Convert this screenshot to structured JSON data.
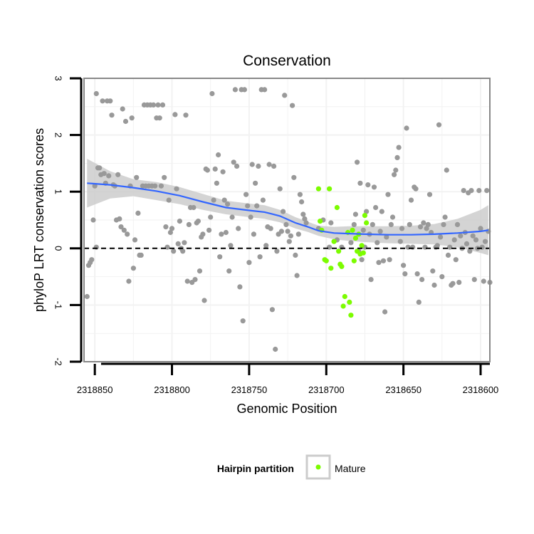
{
  "chart_data": {
    "type": "scatter",
    "title": "Conservation",
    "xlabel": "Genomic Position",
    "ylabel": "phyloP LRT conservation scores",
    "x_reversed": true,
    "xlim": [
      2318857,
      2318594
    ],
    "ylim": [
      -2,
      3
    ],
    "x_ticks": [
      2318850,
      2318800,
      2318750,
      2318700,
      2318650,
      2318600
    ],
    "x_tick_labels": [
      "2318850",
      "2318800",
      "2318750",
      "2318700",
      "2318650",
      "2318600"
    ],
    "y_ticks": [
      -2,
      -1,
      0,
      1,
      2,
      3
    ],
    "y_tick_labels": [
      "-2",
      "-1",
      "0",
      "1",
      "2",
      "3"
    ],
    "grid": true,
    "reference_line": {
      "y": 0,
      "style": "dashed",
      "color": "#000000"
    },
    "legend": {
      "title": "Hairpin partition",
      "position": "bottom",
      "entries": [
        {
          "label": "Mature",
          "color": "#7cfc00"
        }
      ]
    },
    "colors": {
      "other": "#999999",
      "mature": "#7cfc00",
      "smooth": "#3366ff",
      "band": "#cccccc",
      "panel_border": "#888888",
      "grid": "#f2f2f2"
    },
    "smooth": {
      "x": [
        2318855,
        2318840,
        2318825,
        2318810,
        2318795,
        2318780,
        2318765,
        2318750,
        2318740,
        2318730,
        2318720,
        2318712,
        2318705,
        2318695,
        2318685,
        2318675,
        2318660,
        2318645,
        2318630,
        2318615,
        2318600,
        2318595
      ],
      "y": [
        1.15,
        1.12,
        1.07,
        1.01,
        0.93,
        0.82,
        0.72,
        0.67,
        0.64,
        0.57,
        0.45,
        0.38,
        0.31,
        0.27,
        0.26,
        0.25,
        0.24,
        0.24,
        0.25,
        0.27,
        0.3,
        0.32
      ],
      "lower": [
        0.72,
        0.88,
        0.92,
        0.85,
        0.78,
        0.68,
        0.6,
        0.55,
        0.52,
        0.46,
        0.35,
        0.29,
        0.22,
        0.16,
        0.13,
        0.11,
        0.09,
        0.08,
        0.07,
        0.02,
        -0.08,
        -0.12
      ],
      "upper": [
        1.58,
        1.36,
        1.22,
        1.17,
        1.08,
        0.96,
        0.84,
        0.79,
        0.76,
        0.68,
        0.55,
        0.47,
        0.4,
        0.38,
        0.39,
        0.39,
        0.39,
        0.4,
        0.43,
        0.52,
        0.68,
        0.76
      ]
    },
    "series": [
      {
        "name": "Other",
        "color": "#999999",
        "points": [
          [
            2318855,
            -0.85
          ],
          [
            2318854,
            -0.3
          ],
          [
            2318853,
            -0.25
          ],
          [
            2318852,
            -0.2
          ],
          [
            2318851,
            0.5
          ],
          [
            2318850,
            1.1
          ],
          [
            2318849,
            0.02
          ],
          [
            2318849,
            2.73
          ],
          [
            2318848,
            1.42
          ],
          [
            2318847,
            1.42
          ],
          [
            2318846,
            1.3
          ],
          [
            2318845,
            2.6
          ],
          [
            2318844,
            1.32
          ],
          [
            2318843,
            1.15
          ],
          [
            2318842,
            2.6
          ],
          [
            2318841,
            1.28
          ],
          [
            2318840,
            2.6
          ],
          [
            2318839,
            2.35
          ],
          [
            2318838,
            1.12
          ],
          [
            2318837,
            1.1
          ],
          [
            2318836,
            0.5
          ],
          [
            2318835,
            1.3
          ],
          [
            2318834,
            0.52
          ],
          [
            2318833,
            0.38
          ],
          [
            2318832,
            2.46
          ],
          [
            2318831,
            0.32
          ],
          [
            2318830,
            2.24
          ],
          [
            2318829,
            0.25
          ],
          [
            2318828,
            -0.58
          ],
          [
            2318827,
            1.1
          ],
          [
            2318826,
            2.3
          ],
          [
            2318825,
            -0.35
          ],
          [
            2318824,
            0.15
          ],
          [
            2318823,
            1.25
          ],
          [
            2318822,
            0.62
          ],
          [
            2318821,
            -0.12
          ],
          [
            2318820,
            -0.12
          ],
          [
            2318819,
            1.1
          ],
          [
            2318818,
            2.53
          ],
          [
            2318817,
            1.1
          ],
          [
            2318816,
            2.53
          ],
          [
            2318815,
            1.1
          ],
          [
            2318814,
            2.53
          ],
          [
            2318813,
            1.1
          ],
          [
            2318812,
            2.53
          ],
          [
            2318811,
            1.1
          ],
          [
            2318810,
            2.3
          ],
          [
            2318809,
            2.53
          ],
          [
            2318808,
            2.3
          ],
          [
            2318807,
            1.1
          ],
          [
            2318806,
            2.53
          ],
          [
            2318805,
            1.25
          ],
          [
            2318804,
            0.38
          ],
          [
            2318803,
            0.02
          ],
          [
            2318802,
            0.85
          ],
          [
            2318801,
            0.28
          ],
          [
            2318800,
            0.35
          ],
          [
            2318799,
            -0.05
          ],
          [
            2318798,
            2.36
          ],
          [
            2318797,
            1.05
          ],
          [
            2318796,
            0.08
          ],
          [
            2318795,
            0.48
          ],
          [
            2318794,
            0.0
          ],
          [
            2318793,
            -0.05
          ],
          [
            2318792,
            0.1
          ],
          [
            2318791,
            2.35
          ],
          [
            2318790,
            -0.58
          ],
          [
            2318789,
            0.42
          ],
          [
            2318788,
            0.72
          ],
          [
            2318787,
            -0.6
          ],
          [
            2318786,
            0.72
          ],
          [
            2318785,
            -0.55
          ],
          [
            2318784,
            0.45
          ],
          [
            2318783,
            0.48
          ],
          [
            2318782,
            -0.4
          ],
          [
            2318781,
            0.2
          ],
          [
            2318780,
            0.25
          ],
          [
            2318779,
            -0.92
          ],
          [
            2318778,
            1.4
          ],
          [
            2318777,
            1.38
          ],
          [
            2318776,
            0.32
          ],
          [
            2318775,
            0.55
          ],
          [
            2318774,
            2.73
          ],
          [
            2318773,
            0.85
          ],
          [
            2318772,
            1.4
          ],
          [
            2318771,
            1.15
          ],
          [
            2318770,
            1.65
          ],
          [
            2318769,
            -0.15
          ],
          [
            2318768,
            0.25
          ],
          [
            2318767,
            1.35
          ],
          [
            2318766,
            0.85
          ],
          [
            2318765,
            0.28
          ],
          [
            2318764,
            0.78
          ],
          [
            2318763,
            -0.4
          ],
          [
            2318762,
            0.05
          ],
          [
            2318761,
            0.55
          ],
          [
            2318760,
            1.52
          ],
          [
            2318759,
            2.8
          ],
          [
            2318758,
            1.45
          ],
          [
            2318757,
            0.35
          ],
          [
            2318756,
            -0.68
          ],
          [
            2318755,
            2.8
          ],
          [
            2318754,
            -1.28
          ],
          [
            2318753,
            2.8
          ],
          [
            2318752,
            0.95
          ],
          [
            2318751,
            0.75
          ],
          [
            2318750,
            -0.25
          ],
          [
            2318749,
            0.55
          ],
          [
            2318748,
            1.48
          ],
          [
            2318747,
            0.25
          ],
          [
            2318746,
            1.15
          ],
          [
            2318745,
            0.75
          ],
          [
            2318744,
            1.45
          ],
          [
            2318743,
            -0.15
          ],
          [
            2318742,
            2.8
          ],
          [
            2318741,
            0.85
          ],
          [
            2318740,
            2.8
          ],
          [
            2318739,
            0.05
          ],
          [
            2318738,
            0.38
          ],
          [
            2318737,
            1.48
          ],
          [
            2318736,
            0.35
          ],
          [
            2318735,
            -1.08
          ],
          [
            2318734,
            1.45
          ],
          [
            2318733,
            -1.78
          ],
          [
            2318732,
            -0.05
          ],
          [
            2318731,
            0.25
          ],
          [
            2318730,
            1.05
          ],
          [
            2318729,
            0.3
          ],
          [
            2318728,
            0.65
          ],
          [
            2318727,
            2.7
          ],
          [
            2318726,
            0.42
          ],
          [
            2318725,
            0.3
          ],
          [
            2318724,
            0.12
          ],
          [
            2318723,
            0.22
          ],
          [
            2318722,
            2.52
          ],
          [
            2318721,
            1.25
          ],
          [
            2318720,
            -0.12
          ],
          [
            2318719,
            -0.48
          ],
          [
            2318718,
            0.25
          ],
          [
            2318717,
            0.95
          ],
          [
            2318716,
            0.82
          ],
          [
            2318715,
            0.6
          ],
          [
            2318714,
            0.52
          ],
          [
            2318713,
            0.45
          ],
          [
            2318705,
            0.35
          ],
          [
            2318702,
            0.5
          ],
          [
            2318698,
            0.02
          ],
          [
            2318697,
            0.45
          ],
          [
            2318693,
            0.15
          ],
          [
            2318690,
            0.02
          ],
          [
            2318684,
            0.1
          ],
          [
            2318682,
            0.42
          ],
          [
            2318681,
            0.6
          ],
          [
            2318680,
            1.52
          ],
          [
            2318679,
            -0.05
          ],
          [
            2318678,
            1.15
          ],
          [
            2318677,
            -0.2
          ],
          [
            2318676,
            0.32
          ],
          [
            2318675,
            0.02
          ],
          [
            2318674,
            0.65
          ],
          [
            2318673,
            1.12
          ],
          [
            2318672,
            0.25
          ],
          [
            2318671,
            -0.55
          ],
          [
            2318670,
            0.42
          ],
          [
            2318669,
            1.08
          ],
          [
            2318668,
            0.72
          ],
          [
            2318667,
            0.1
          ],
          [
            2318666,
            -0.25
          ],
          [
            2318665,
            0.3
          ],
          [
            2318664,
            0.65
          ],
          [
            2318663,
            -0.22
          ],
          [
            2318662,
            -1.12
          ],
          [
            2318661,
            0.2
          ],
          [
            2318660,
            0.95
          ],
          [
            2318659,
            -0.2
          ],
          [
            2318658,
            0.42
          ],
          [
            2318657,
            0.55
          ],
          [
            2318656,
            1.3
          ],
          [
            2318655,
            1.38
          ],
          [
            2318654,
            1.6
          ],
          [
            2318653,
            1.78
          ],
          [
            2318652,
            0.12
          ],
          [
            2318651,
            0.35
          ],
          [
            2318650,
            -0.3
          ],
          [
            2318649,
            -0.45
          ],
          [
            2318648,
            2.12
          ],
          [
            2318647,
            0.02
          ],
          [
            2318646,
            0.42
          ],
          [
            2318645,
            0.85
          ],
          [
            2318644,
            0.02
          ],
          [
            2318643,
            1.08
          ],
          [
            2318642,
            1.05
          ],
          [
            2318641,
            -0.45
          ],
          [
            2318640,
            -0.95
          ],
          [
            2318639,
            0.38
          ],
          [
            2318638,
            -0.55
          ],
          [
            2318637,
            0.45
          ],
          [
            2318636,
            0.02
          ],
          [
            2318635,
            0.35
          ],
          [
            2318634,
            0.42
          ],
          [
            2318633,
            0.95
          ],
          [
            2318632,
            0.28
          ],
          [
            2318631,
            -0.4
          ],
          [
            2318630,
            -0.65
          ],
          [
            2318629,
            0.02
          ],
          [
            2318628,
            0.05
          ],
          [
            2318627,
            2.18
          ],
          [
            2318626,
            0.2
          ],
          [
            2318625,
            -0.5
          ],
          [
            2318624,
            0.42
          ],
          [
            2318623,
            0.55
          ],
          [
            2318622,
            1.38
          ],
          [
            2318621,
            -0.12
          ],
          [
            2318620,
            0.02
          ],
          [
            2318619,
            -0.65
          ],
          [
            2318618,
            -0.62
          ],
          [
            2318617,
            0.15
          ],
          [
            2318616,
            -0.2
          ],
          [
            2318615,
            0.42
          ],
          [
            2318614,
            -0.6
          ],
          [
            2318613,
            0.22
          ],
          [
            2318612,
            0.0
          ],
          [
            2318611,
            1.02
          ],
          [
            2318610,
            0.28
          ],
          [
            2318609,
            0.08
          ],
          [
            2318608,
            0.98
          ],
          [
            2318607,
            -0.05
          ],
          [
            2318606,
            1.02
          ],
          [
            2318605,
            0.22
          ],
          [
            2318604,
            -0.55
          ],
          [
            2318603,
            0.15
          ],
          [
            2318602,
            0.0
          ],
          [
            2318601,
            1.02
          ],
          [
            2318600,
            0.35
          ],
          [
            2318599,
            0.02
          ],
          [
            2318598,
            -0.58
          ],
          [
            2318597,
            0.12
          ],
          [
            2318596,
            1.02
          ],
          [
            2318595,
            0.3
          ],
          [
            2318594,
            -0.6
          ]
        ]
      },
      {
        "name": "Mature",
        "color": "#7cfc00",
        "points": [
          [
            2318705,
            1.05
          ],
          [
            2318698,
            1.05
          ],
          [
            2318704,
            0.48
          ],
          [
            2318703,
            0.32
          ],
          [
            2318693,
            0.72
          ],
          [
            2318700,
            -0.22
          ],
          [
            2318701,
            -0.2
          ],
          [
            2318697,
            -0.35
          ],
          [
            2318695,
            0.12
          ],
          [
            2318692,
            -0.05
          ],
          [
            2318691,
            -0.28
          ],
          [
            2318690,
            -0.32
          ],
          [
            2318689,
            -1.02
          ],
          [
            2318688,
            -0.85
          ],
          [
            2318686,
            0.28
          ],
          [
            2318685,
            -0.95
          ],
          [
            2318684,
            -1.18
          ],
          [
            2318683,
            0.32
          ],
          [
            2318682,
            -0.22
          ],
          [
            2318681,
            0.18
          ],
          [
            2318680,
            -0.05
          ],
          [
            2318679,
            0.25
          ],
          [
            2318678,
            -0.1
          ],
          [
            2318677,
            0.05
          ],
          [
            2318676,
            -0.08
          ],
          [
            2318675,
            0.58
          ],
          [
            2318674,
            0.45
          ]
        ]
      }
    ]
  }
}
